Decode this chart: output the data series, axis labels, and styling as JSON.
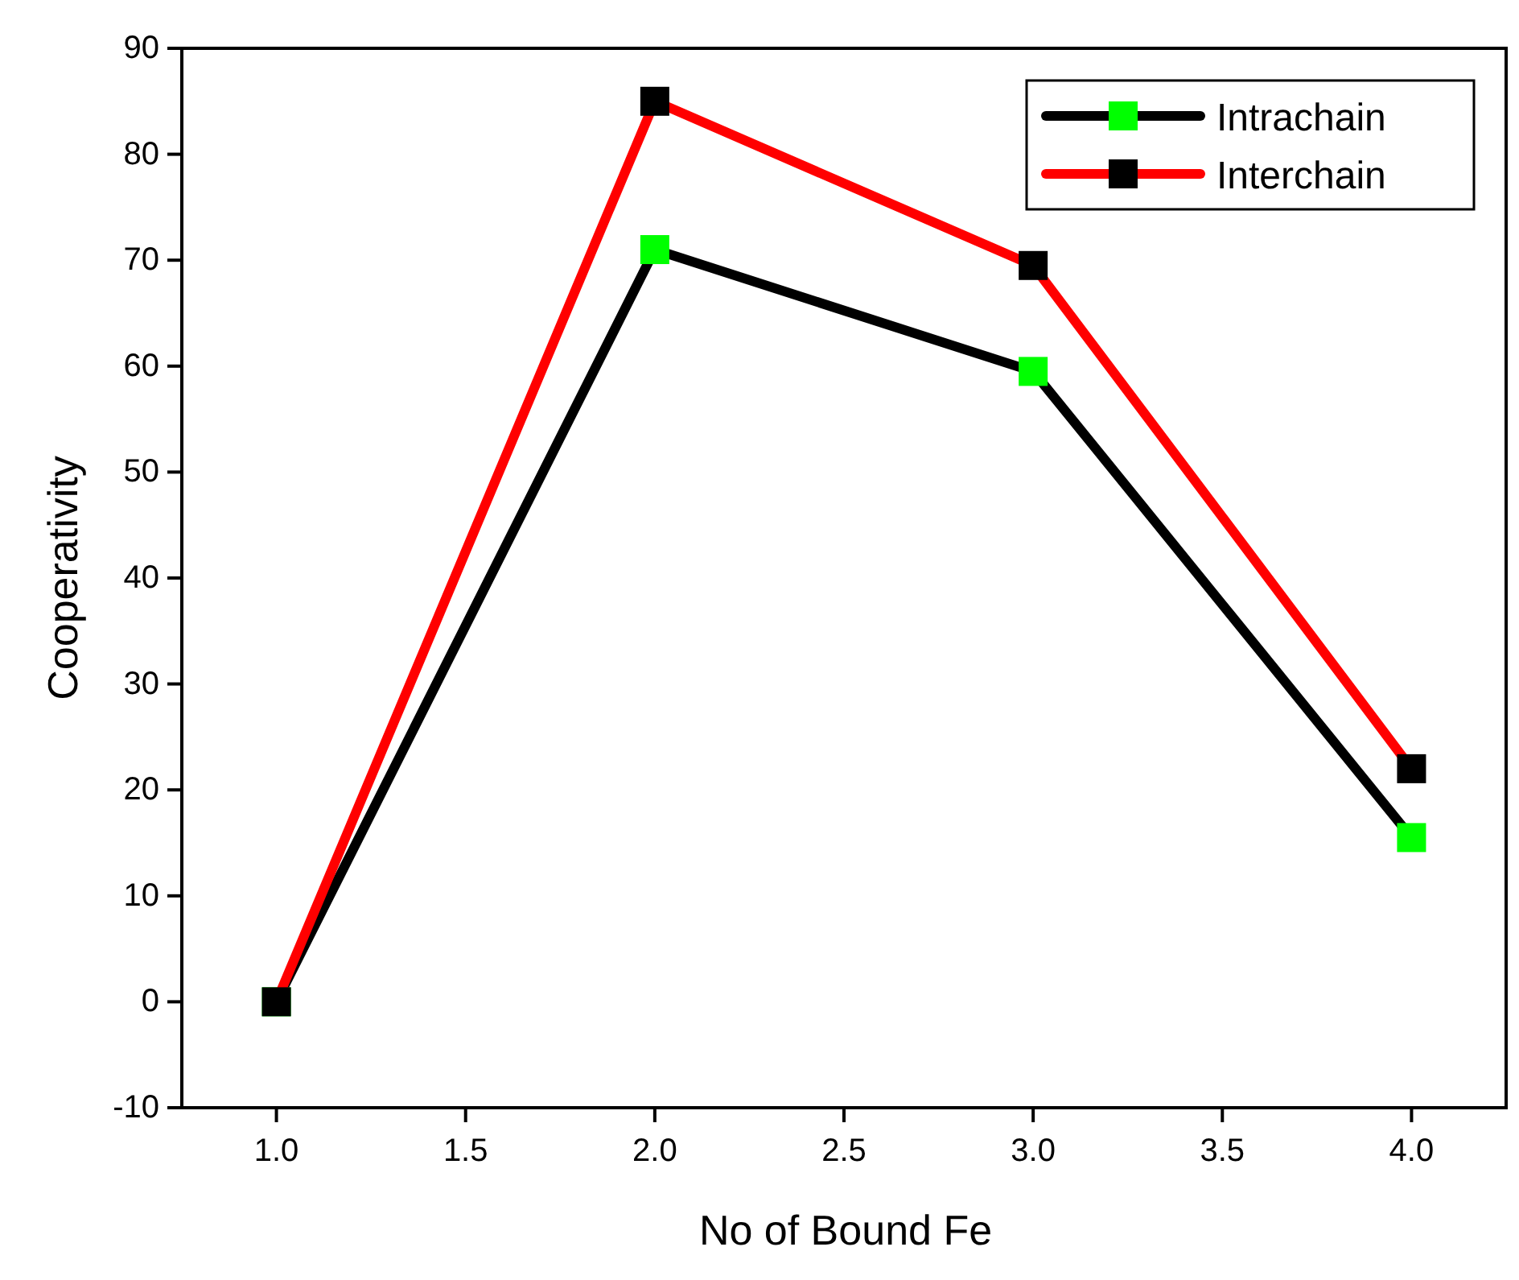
{
  "chart_data": {
    "type": "line",
    "xlabel": "No of Bound Fe",
    "ylabel": "Cooperativity",
    "x": [
      1,
      2,
      3,
      4
    ],
    "series": [
      {
        "name": "Intrachain",
        "color": "#000000",
        "values": [
          0,
          71,
          59.5,
          15.5
        ]
      },
      {
        "name": "Interchain",
        "color": "#ff0000",
        "values": [
          0,
          85,
          69.5,
          22
        ]
      }
    ],
    "xlim": [
      0.75,
      4.25
    ],
    "xticks": [
      {
        "value": 1,
        "label": "1.0"
      },
      {
        "value": 1.5,
        "label": "1.5"
      },
      {
        "value": 2,
        "label": "2.0"
      },
      {
        "value": 2.5,
        "label": "2.5"
      },
      {
        "value": 3,
        "label": "3.0"
      },
      {
        "value": 3.5,
        "label": "3.5"
      },
      {
        "value": 4,
        "label": "4.0"
      }
    ],
    "ylim": [
      -10,
      90
    ],
    "yticks": [
      -10,
      0,
      10,
      20,
      30,
      40,
      50,
      60,
      70,
      80,
      90
    ],
    "marker": "square",
    "line_style": "solid",
    "legend": "top right",
    "grid": false
  }
}
